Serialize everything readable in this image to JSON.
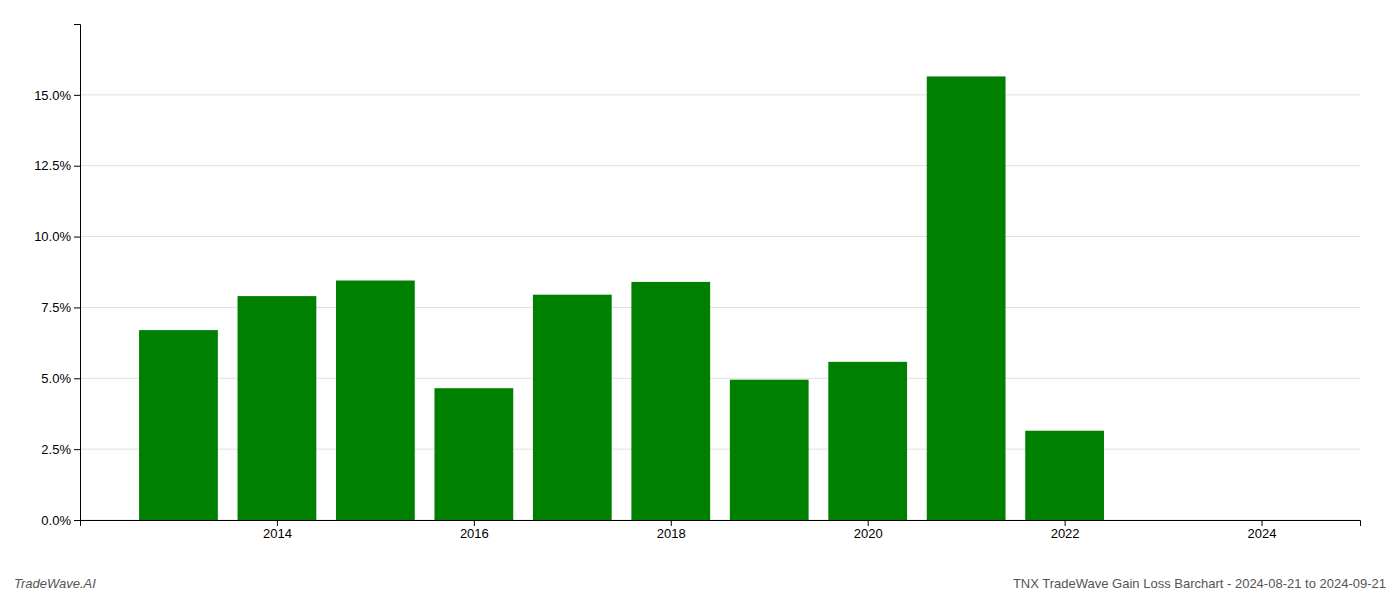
{
  "chart_data": {
    "type": "bar",
    "x": [
      2013,
      2014,
      2015,
      2016,
      2017,
      2018,
      2019,
      2020,
      2021,
      2022
    ],
    "values": [
      0.067,
      0.079,
      0.0845,
      0.0465,
      0.0795,
      0.084,
      0.0495,
      0.0558,
      0.1565,
      0.0315
    ],
    "color": "#008000",
    "xlim": [
      2012.0,
      2025.0
    ],
    "xticks": [
      2014,
      2016,
      2018,
      2020,
      2022,
      2024
    ],
    "ylim": [
      0.0,
      0.175
    ],
    "yticks": [
      {
        "value": 0.0,
        "label": "0.0%"
      },
      {
        "value": 0.025,
        "label": "2.5%"
      },
      {
        "value": 0.05,
        "label": "5.0%"
      },
      {
        "value": 0.075,
        "label": "7.5%"
      },
      {
        "value": 0.1,
        "label": "10.0%"
      },
      {
        "value": 0.125,
        "label": "12.5%"
      },
      {
        "value": 0.15,
        "label": "15.0%"
      }
    ],
    "grid": true,
    "annotations": [
      "TradeWave.AI",
      "TNX TradeWave Gain Loss Barchart - 2024-08-21 to 2024-09-21"
    ]
  }
}
